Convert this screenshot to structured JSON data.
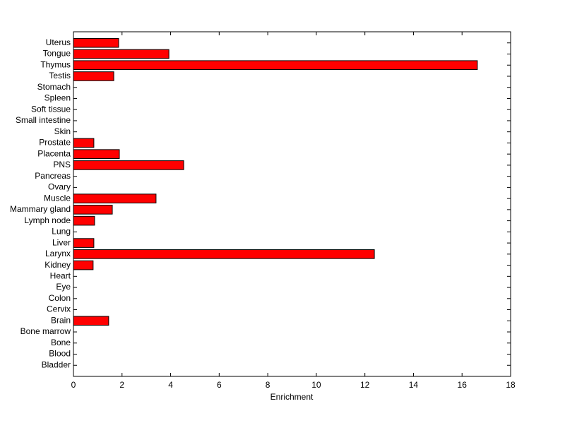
{
  "chart_data": {
    "type": "barh",
    "xlabel": "Enrichment",
    "categories": [
      "Uterus",
      "Tongue",
      "Thymus",
      "Testis",
      "Stomach",
      "Spleen",
      "Soft tissue",
      "Small intestine",
      "Skin",
      "Prostate",
      "Placenta",
      "PNS",
      "Pancreas",
      "Ovary",
      "Muscle",
      "Mammary gland",
      "Lymph node",
      "Lung",
      "Liver",
      "Larynx",
      "Kidney",
      "Heart",
      "Eye",
      "Colon",
      "Cervix",
      "Brain",
      "Bone marrow",
      "Bone",
      "Blood",
      "Bladder"
    ],
    "values": [
      1.86,
      3.93,
      16.63,
      1.66,
      0,
      0,
      0,
      0,
      0,
      0.84,
      1.89,
      4.54,
      0,
      0,
      3.4,
      1.6,
      0.87,
      0,
      0.84,
      12.39,
      0.81,
      0,
      0,
      0,
      0,
      1.45,
      0,
      0,
      0,
      0
    ],
    "color": "#ff0000",
    "xlim": [
      0,
      18
    ],
    "xticks": [
      0,
      2,
      4,
      6,
      8,
      10,
      12,
      14,
      16,
      18
    ]
  }
}
